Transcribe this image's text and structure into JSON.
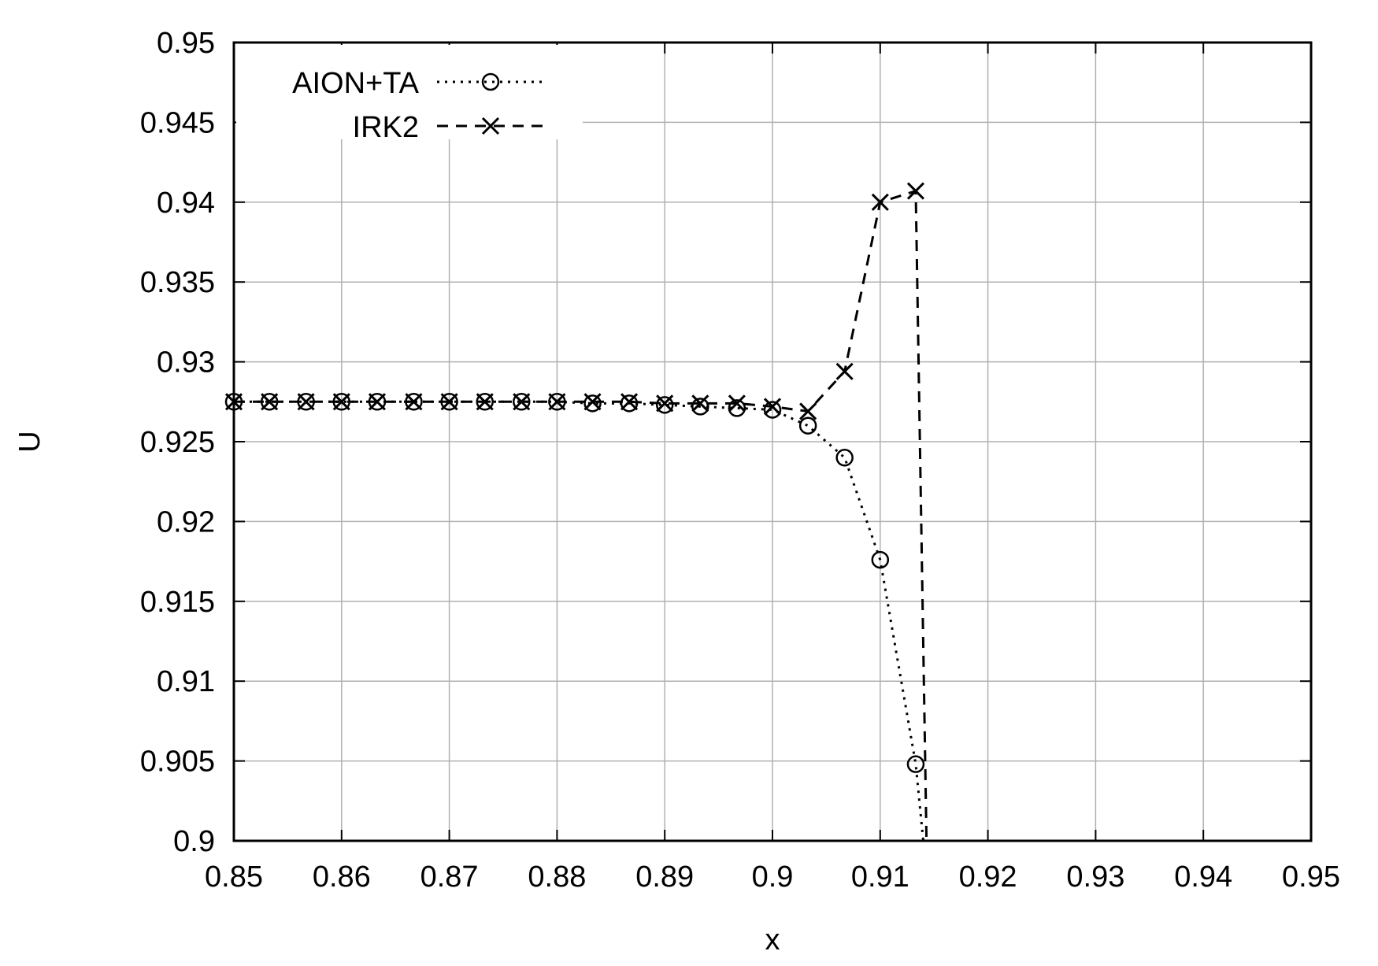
{
  "chart_data": {
    "type": "line",
    "title": "",
    "xlabel": "x",
    "ylabel": "U",
    "xlim": [
      0.85,
      0.95
    ],
    "ylim": [
      0.9,
      0.95
    ],
    "xticks": [
      "0.85",
      "0.86",
      "0.87",
      "0.88",
      "0.89",
      "0.9",
      "0.91",
      "0.92",
      "0.93",
      "0.94",
      "0.95"
    ],
    "yticks": [
      "0.9",
      "0.905",
      "0.91",
      "0.915",
      "0.92",
      "0.925",
      "0.93",
      "0.935",
      "0.94",
      "0.945",
      "0.95"
    ],
    "grid": true,
    "legend_position": "top-left",
    "colors": {
      "line": "#000000",
      "grid": "#b0b0b0",
      "background": "#ffffff"
    },
    "series": [
      {
        "name": "AION+TA",
        "line_style": "dotted",
        "marker": "circle",
        "x": [
          0.85,
          0.8533,
          0.8567,
          0.86,
          0.8633,
          0.8667,
          0.87,
          0.8733,
          0.8767,
          0.88,
          0.8833,
          0.8867,
          0.89,
          0.8933,
          0.8967,
          0.9,
          0.9033,
          0.9067,
          0.91,
          0.9133,
          0.914
        ],
        "values": [
          0.9275,
          0.9275,
          0.9275,
          0.9275,
          0.9275,
          0.9275,
          0.9275,
          0.9275,
          0.9275,
          0.9275,
          0.9274,
          0.9274,
          0.9273,
          0.9272,
          0.9271,
          0.927,
          0.926,
          0.924,
          0.9176,
          0.9048,
          0.9
        ]
      },
      {
        "name": "IRK2",
        "line_style": "dashed",
        "marker": "x",
        "x": [
          0.85,
          0.8533,
          0.8567,
          0.86,
          0.8633,
          0.8667,
          0.87,
          0.8733,
          0.8767,
          0.88,
          0.8833,
          0.8867,
          0.89,
          0.8933,
          0.8967,
          0.9,
          0.9033,
          0.9067,
          0.91,
          0.9133,
          0.9143
        ],
        "values": [
          0.9275,
          0.9275,
          0.9275,
          0.9275,
          0.9275,
          0.9275,
          0.9275,
          0.9275,
          0.9275,
          0.9275,
          0.9275,
          0.9275,
          0.9274,
          0.9274,
          0.9274,
          0.9272,
          0.9269,
          0.9294,
          0.94,
          0.9407,
          0.9
        ]
      }
    ]
  }
}
